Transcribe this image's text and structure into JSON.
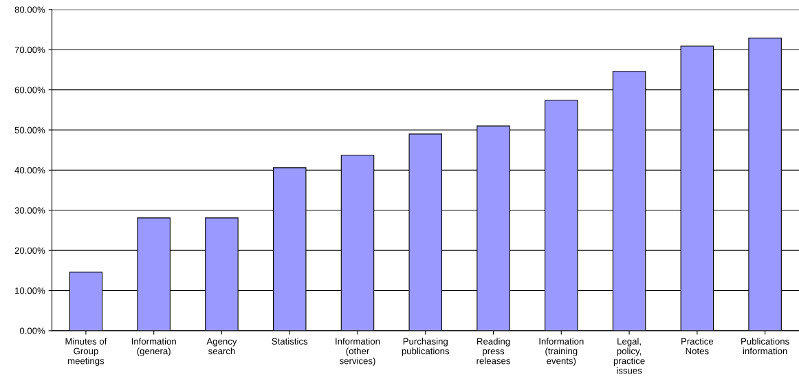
{
  "chart_data": {
    "type": "bar",
    "categories": [
      "Minutes of\nGroup\nmeetings",
      "Information\n(genera)",
      "Agency\nsearch",
      "Statistics",
      "Information\n(other\nservices)",
      "Purchasing\npublications",
      "Reading\npress\nreleases",
      "Information\n(training\nevents)",
      "Legal,\npolicy,\npractice\nissues",
      "Practice\nNotes",
      "Publications\ninformation"
    ],
    "values": [
      14.6,
      28.1,
      28.1,
      40.6,
      43.7,
      49.0,
      51.0,
      57.4,
      64.6,
      70.9,
      72.9
    ],
    "color": "#9999ff",
    "ylim": [
      0,
      80
    ],
    "yticks": [
      {
        "value": 0,
        "label": "0.00%"
      },
      {
        "value": 10,
        "label": "10.00%"
      },
      {
        "value": 20,
        "label": "20.00%"
      },
      {
        "value": 30,
        "label": "30.00%"
      },
      {
        "value": 40,
        "label": "40.00%"
      },
      {
        "value": 50,
        "label": "50.00%"
      },
      {
        "value": 60,
        "label": "60.00%"
      },
      {
        "value": 70,
        "label": "70.00%"
      },
      {
        "value": 80,
        "label": "80.00%"
      }
    ],
    "grid": "y",
    "legend": false
  }
}
